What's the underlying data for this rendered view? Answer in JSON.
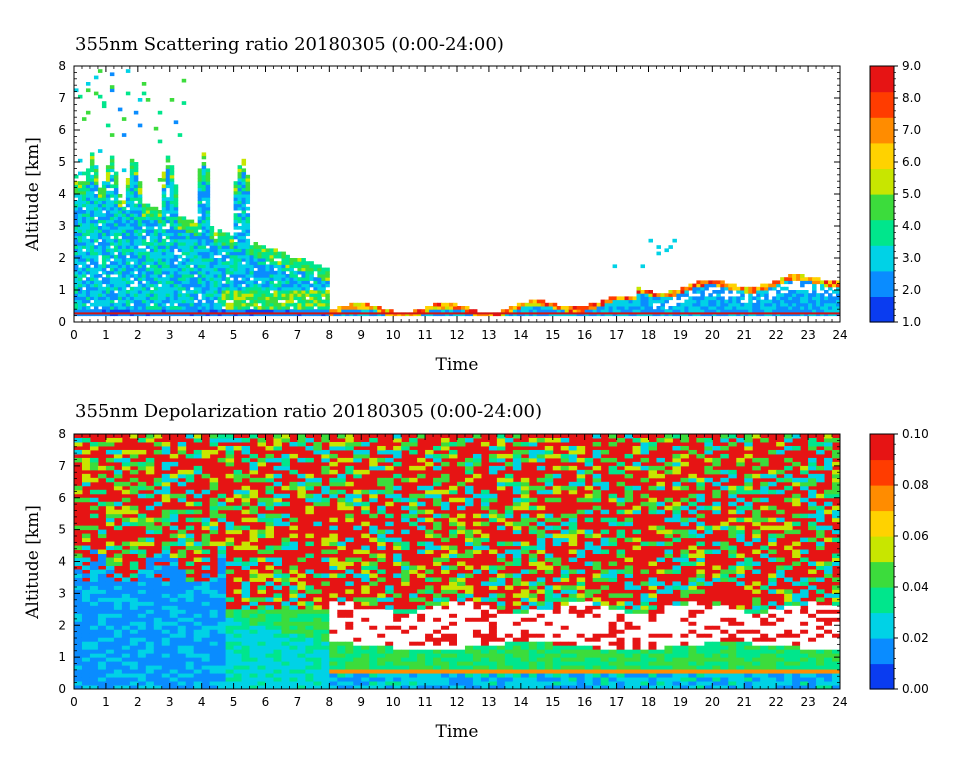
{
  "chart_data": [
    {
      "type": "heatmap",
      "title": "355nm Scattering ratio  20180305 (0:00-24:00)",
      "xlabel": "Time",
      "ylabel": "Altitude [km]",
      "xlim": [
        0,
        24
      ],
      "ylim": [
        0,
        8
      ],
      "xticks": [
        "0",
        "1",
        "2",
        "3",
        "4",
        "5",
        "6",
        "7",
        "8",
        "9",
        "10",
        "11",
        "12",
        "13",
        "14",
        "15",
        "16",
        "17",
        "18",
        "19",
        "20",
        "21",
        "22",
        "23",
        "24"
      ],
      "yticks": [
        "0",
        "1",
        "2",
        "3",
        "4",
        "5",
        "6",
        "7",
        "8"
      ],
      "colorbar": {
        "range": [
          1.0,
          9.0
        ],
        "ticks": [
          "1.0",
          "2.0",
          "3.0",
          "4.0",
          "5.0",
          "6.0",
          "7.0",
          "8.0",
          "9.0"
        ],
        "colors": [
          "#0a3cf0",
          "#0a8cff",
          "#00d2e6",
          "#00e68c",
          "#3cdc3c",
          "#c8e600",
          "#ffd200",
          "#ff8c00",
          "#ff3c00",
          "#e61414"
        ]
      },
      "features": [
        {
          "type": "aerosol_layer",
          "time_start": 0.0,
          "time_end": 8.0,
          "alt_top": 4.0,
          "peak_ratio": 4.5
        },
        {
          "type": "cloud_plumes",
          "times": [
            0.5,
            1.1,
            1.8,
            2.9,
            4.0,
            5.2
          ],
          "max_alt": 7.8
        },
        {
          "type": "boundary_layer",
          "time_start": 8.0,
          "time_end": 24.0,
          "alt_top": 1.2,
          "ratio": 2.5
        }
      ]
    },
    {
      "type": "heatmap",
      "title": "355nm Depolarization ratio  20180305 (0:00-24:00)",
      "xlabel": "Time",
      "ylabel": "Altitude [km]",
      "xlim": [
        0,
        24
      ],
      "ylim": [
        0,
        8
      ],
      "xticks": [
        "0",
        "1",
        "2",
        "3",
        "4",
        "5",
        "6",
        "7",
        "8",
        "9",
        "10",
        "11",
        "12",
        "13",
        "14",
        "15",
        "16",
        "17",
        "18",
        "19",
        "20",
        "21",
        "22",
        "23",
        "24"
      ],
      "yticks": [
        "0",
        "1",
        "2",
        "3",
        "4",
        "5",
        "6",
        "7",
        "8"
      ],
      "colorbar": {
        "range": [
          0.0,
          0.1
        ],
        "ticks": [
          "0.00",
          "0.02",
          "0.04",
          "0.06",
          "0.08",
          "0.10"
        ],
        "colors": [
          "#0a3cf0",
          "#0a8cff",
          "#00d2e6",
          "#00e68c",
          "#3cdc3c",
          "#c8e600",
          "#ffd200",
          "#ff8c00",
          "#ff3c00",
          "#e61414"
        ]
      },
      "features": [
        {
          "type": "noise_region",
          "alt_bottom": 2.5,
          "alt_top": 8.0,
          "typical_value": 0.09
        },
        {
          "type": "low_depol_plumes",
          "time_start": 0.0,
          "time_end": 4.6,
          "alt_top": 4.0,
          "value": 0.015
        },
        {
          "type": "gap_band",
          "time_start": 7.8,
          "time_end": 24.0,
          "alt_bottom": 1.2,
          "alt_top": 2.6
        },
        {
          "type": "boundary_layer",
          "time_start": 7.8,
          "time_end": 24.0,
          "alt_top": 1.2,
          "value": 0.035
        }
      ]
    }
  ]
}
